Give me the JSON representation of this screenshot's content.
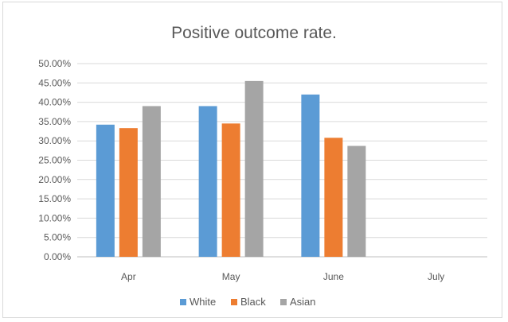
{
  "chart_data": {
    "type": "bar",
    "title": "Positive outcome rate.",
    "xlabel": "",
    "ylabel": "",
    "categories": [
      "Apr",
      "May",
      "June",
      "July"
    ],
    "series": [
      {
        "name": "White",
        "color": "#5b9bd5",
        "values": [
          34.2,
          39.0,
          42.0,
          null
        ]
      },
      {
        "name": "Black",
        "color": "#ed7d31",
        "values": [
          33.3,
          34.5,
          30.8,
          null
        ]
      },
      {
        "name": "Asian",
        "color": "#a5a5a5",
        "values": [
          39.0,
          45.5,
          28.7,
          null
        ]
      }
    ],
    "ylim": [
      0,
      50
    ],
    "y_ticks": [
      "0.00%",
      "5.00%",
      "10.00%",
      "15.00%",
      "20.00%",
      "25.00%",
      "30.00%",
      "35.00%",
      "40.00%",
      "45.00%",
      "50.00%"
    ],
    "grid": "horizontal",
    "legend_position": "bottom"
  }
}
